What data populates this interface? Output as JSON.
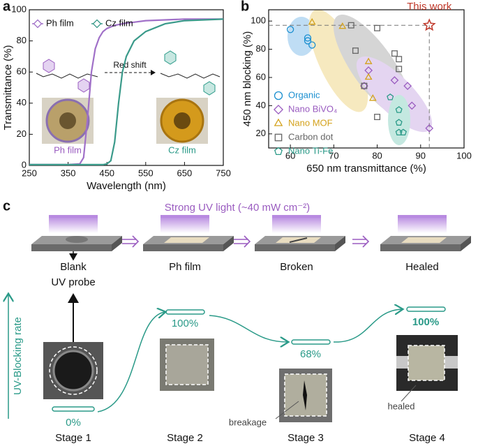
{
  "chart_data": [
    {
      "type": "line",
      "label": "a",
      "x_label": "Wavelength (nm)",
      "y_label": "Transmittance (%)",
      "x": [
        250,
        300,
        350,
        380,
        390,
        400,
        410,
        420,
        430,
        440,
        450,
        460,
        470,
        480,
        490,
        500,
        520,
        550,
        600,
        650,
        700,
        750
      ],
      "series": [
        {
          "name": "Ph film",
          "color": "#a070c8",
          "values": [
            0.5,
            0.5,
            0.5,
            1,
            5,
            30,
            60,
            75,
            82,
            86,
            88,
            89,
            90,
            90.5,
            91,
            91.5,
            92,
            93,
            93.5,
            94,
            94,
            94
          ]
        },
        {
          "name": "Cz film",
          "color": "#3a9a8a",
          "values": [
            0.5,
            0.5,
            0.5,
            0.5,
            0.5,
            0.5,
            0.5,
            0.5,
            0.5,
            0.5,
            1,
            3,
            15,
            40,
            60,
            70,
            80,
            86,
            91,
            93,
            93.5,
            94
          ]
        }
      ],
      "xlim": [
        250,
        750
      ],
      "xticks": [
        250,
        350,
        450,
        550,
        650,
        750
      ],
      "ylim": [
        0,
        100
      ],
      "yticks": [
        0,
        20,
        40,
        60,
        80,
        100
      ],
      "legend": "upper left",
      "annotations": {
        "shift": "Red shift",
        "ph_caption": "Ph film",
        "cz_caption": "Cz film"
      }
    },
    {
      "type": "scatter",
      "label": "b",
      "x_label": "650 nm transmittance (%)",
      "y_label": "450 nm blocking (%)",
      "series": [
        {
          "name": "Organic",
          "color": "#1a8fd0",
          "marker": "circle",
          "x": [
            60,
            64,
            64,
            65
          ],
          "values": [
            94,
            88,
            86,
            83
          ]
        },
        {
          "name": "Nano BiVO₄",
          "color": "#9a5cc0",
          "marker": "diamond",
          "x": [
            78,
            77,
            84,
            87,
            88,
            92
          ],
          "values": [
            65,
            54,
            58,
            54,
            40,
            24
          ]
        },
        {
          "name": "Nano MOF",
          "color": "#d4a21c",
          "marker": "triangle",
          "x": [
            65,
            72,
            78,
            78,
            79
          ],
          "values": [
            99,
            96,
            71,
            60,
            45
          ]
        },
        {
          "name": "Carbon dot",
          "color": "#666666",
          "marker": "square",
          "x": [
            74,
            80,
            75,
            84,
            85,
            85,
            77,
            80
          ],
          "values": [
            97,
            95,
            79,
            77,
            73,
            66,
            54,
            32
          ]
        },
        {
          "name": "Nano Ti-Fe",
          "color": "#2a9a88",
          "marker": "pentagon",
          "x": [
            83,
            85,
            85,
            85,
            86
          ],
          "values": [
            46,
            37,
            28,
            21,
            21
          ]
        }
      ],
      "highlight": {
        "label": "This work",
        "x": 92,
        "y": 97,
        "color": "#c0392b"
      },
      "xlim": [
        55,
        100
      ],
      "xticks": [
        60,
        70,
        80,
        90,
        100
      ],
      "ylim": [
        10,
        108
      ],
      "yticks": [
        20,
        40,
        60,
        80,
        100
      ],
      "legend": "lower left"
    }
  ],
  "panel_c": {
    "label": "c",
    "light": "Strong UV light (~40 mW cm⁻²)",
    "axis": "UV-Blocking rate",
    "stages": [
      {
        "name": "Stage 1",
        "state": [
          "Blank",
          "UV probe"
        ],
        "rate": "0%"
      },
      {
        "name": "Stage 2",
        "state": [
          "Ph film"
        ],
        "rate": "100%"
      },
      {
        "name": "Stage 3",
        "state": [
          "Broken"
        ],
        "rate": "68%"
      },
      {
        "name": "Stage 4",
        "state": [
          "Healed"
        ],
        "rate": "100%"
      }
    ],
    "notes": {
      "breakage": "breakage",
      "healed": "healed"
    }
  }
}
